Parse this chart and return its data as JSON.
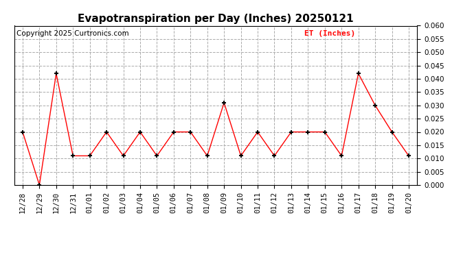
{
  "title": "Evapotranspiration per Day (Inches) 20250121",
  "copyright": "Copyright 2025 Curtronics.com",
  "legend_label": "ET (Inches)",
  "legend_color": "#ff0000",
  "line_color": "#ff0000",
  "marker_color": "#000000",
  "background_color": "#ffffff",
  "x_labels": [
    "12/28",
    "12/29",
    "12/30",
    "12/31",
    "01/01",
    "01/02",
    "01/03",
    "01/04",
    "01/05",
    "01/06",
    "01/07",
    "01/08",
    "01/09",
    "01/10",
    "01/11",
    "01/12",
    "01/13",
    "01/14",
    "01/15",
    "01/16",
    "01/17",
    "01/18",
    "01/19",
    "01/20"
  ],
  "y_values": [
    0.02,
    0.0,
    0.042,
    0.011,
    0.011,
    0.02,
    0.011,
    0.02,
    0.011,
    0.02,
    0.02,
    0.011,
    0.031,
    0.011,
    0.02,
    0.011,
    0.02,
    0.02,
    0.02,
    0.011,
    0.042,
    0.03,
    0.02,
    0.011
  ],
  "ylim": [
    0.0,
    0.06
  ],
  "yticks": [
    0.0,
    0.005,
    0.01,
    0.015,
    0.02,
    0.025,
    0.03,
    0.035,
    0.04,
    0.045,
    0.05,
    0.055,
    0.06
  ],
  "grid_color": "#aaaaaa",
  "grid_style": "--",
  "title_fontsize": 11,
  "tick_fontsize": 7.5,
  "copyright_fontsize": 7.5,
  "legend_fontsize": 8
}
